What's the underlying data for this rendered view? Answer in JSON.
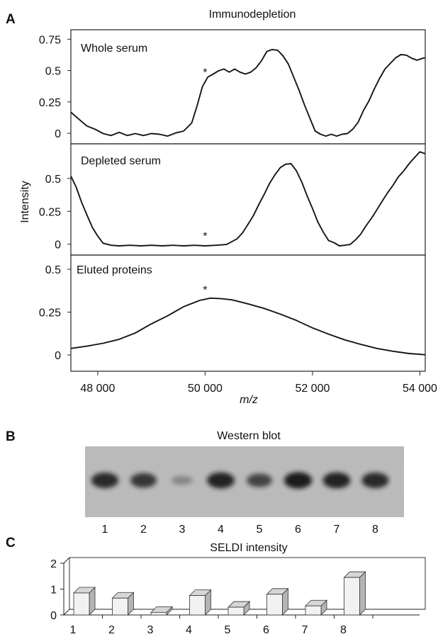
{
  "panel_labels": {
    "a": "A",
    "b": "B",
    "c": "C"
  },
  "chart_data": [
    {
      "type": "line",
      "title": "Immunodepletion",
      "xlabel": "m/z",
      "ylabel": "Intensity",
      "x_ticks": [
        48000,
        50000,
        52000,
        54000
      ],
      "x_tick_labels": [
        "48 000",
        "50 000",
        "52 000",
        "54 000"
      ],
      "xlim": [
        47500,
        54100
      ],
      "asterisk": "*",
      "subplots": [
        {
          "name": "Whole serum",
          "ylim": [
            -0.05,
            0.78
          ],
          "y_ticks": [
            0,
            0.25,
            0.5,
            0.75
          ],
          "y_tick_labels": [
            "0",
            "0.25",
            "0.5",
            "0.75"
          ],
          "asterisk_x": 50000,
          "x": [
            47500,
            47650,
            47800,
            47950,
            48100,
            48250,
            48400,
            48550,
            48700,
            48850,
            49000,
            49150,
            49300,
            49450,
            49600,
            49750,
            49850,
            49950,
            50050,
            50150,
            50250,
            50350,
            50450,
            50550,
            50650,
            50750,
            50850,
            50950,
            51050,
            51150,
            51250,
            51350,
            51450,
            51550,
            51650,
            51750,
            51850,
            51950,
            52050,
            52150,
            52250,
            52350,
            52450,
            52550,
            52650,
            52750,
            52850,
            52950,
            53050,
            53150,
            53250,
            53350,
            53450,
            53550,
            53650,
            53750,
            53850,
            53950,
            54050,
            54100
          ],
          "y": [
            0.17,
            0.11,
            0.06,
            0.03,
            0.0,
            -0.02,
            0.01,
            -0.02,
            0.0,
            -0.02,
            0.0,
            -0.01,
            -0.02,
            0.0,
            0.02,
            0.08,
            0.22,
            0.37,
            0.45,
            0.47,
            0.5,
            0.51,
            0.49,
            0.51,
            0.49,
            0.47,
            0.49,
            0.52,
            0.58,
            0.65,
            0.67,
            0.66,
            0.62,
            0.55,
            0.45,
            0.34,
            0.23,
            0.12,
            0.02,
            -0.01,
            -0.02,
            -0.01,
            -0.02,
            -0.01,
            0.0,
            0.03,
            0.09,
            0.18,
            0.26,
            0.35,
            0.44,
            0.51,
            0.56,
            0.6,
            0.63,
            0.62,
            0.6,
            0.58,
            0.6,
            0.6
          ]
        },
        {
          "name": "Depleted serum",
          "ylim": [
            -0.05,
            0.72
          ],
          "y_ticks": [
            0,
            0.25,
            0.5
          ],
          "y_tick_labels": [
            "0",
            "0.25",
            "0.5"
          ],
          "asterisk_x": 50000,
          "x": [
            47500,
            47600,
            47700,
            47800,
            47900,
            48000,
            48100,
            48250,
            48400,
            48600,
            48800,
            49000,
            49200,
            49400,
            49600,
            49800,
            50000,
            50200,
            50400,
            50600,
            50700,
            50800,
            50900,
            51000,
            51100,
            51200,
            51300,
            51400,
            51500,
            51600,
            51700,
            51800,
            51900,
            52000,
            52100,
            52200,
            52300,
            52400,
            52500,
            52600,
            52700,
            52800,
            52900,
            53000,
            53100,
            53200,
            53300,
            53400,
            53500,
            53600,
            53700,
            53800,
            53900,
            54000,
            54100
          ],
          "y": [
            0.52,
            0.43,
            0.32,
            0.22,
            0.13,
            0.06,
            0.01,
            -0.01,
            -0.01,
            -0.01,
            -0.01,
            -0.01,
            -0.01,
            -0.01,
            -0.01,
            -0.01,
            -0.01,
            -0.01,
            0.0,
            0.04,
            0.09,
            0.15,
            0.22,
            0.3,
            0.38,
            0.46,
            0.53,
            0.58,
            0.61,
            0.61,
            0.56,
            0.47,
            0.37,
            0.27,
            0.17,
            0.09,
            0.03,
            0.01,
            -0.01,
            -0.01,
            0.0,
            0.03,
            0.08,
            0.14,
            0.2,
            0.26,
            0.33,
            0.39,
            0.45,
            0.51,
            0.56,
            0.61,
            0.66,
            0.7,
            0.69
          ]
        },
        {
          "name": "Eluted proteins",
          "ylim": [
            -0.07,
            0.55
          ],
          "y_ticks": [
            0,
            0.25,
            0.5
          ],
          "y_tick_labels": [
            "0",
            "0.25",
            "0.5"
          ],
          "asterisk_x": 50000,
          "x": [
            47500,
            47800,
            48100,
            48400,
            48700,
            49000,
            49300,
            49600,
            49900,
            50100,
            50300,
            50500,
            50800,
            51100,
            51400,
            51700,
            52000,
            52300,
            52600,
            52900,
            53200,
            53500,
            53800,
            54100
          ],
          "y": [
            0.04,
            0.05,
            0.07,
            0.09,
            0.13,
            0.18,
            0.23,
            0.28,
            0.32,
            0.33,
            0.33,
            0.32,
            0.3,
            0.27,
            0.24,
            0.2,
            0.16,
            0.12,
            0.09,
            0.06,
            0.04,
            0.02,
            0.01,
            0.0
          ]
        }
      ]
    },
    {
      "type": "other",
      "title": "Western blot",
      "lanes": [
        "1",
        "2",
        "3",
        "4",
        "5",
        "6",
        "7",
        "8"
      ],
      "band_intensity": [
        0.85,
        0.75,
        0.15,
        0.9,
        0.65,
        0.95,
        0.9,
        0.85
      ],
      "colors": {
        "background": "#b8b8b8",
        "band": "#141414"
      }
    },
    {
      "type": "bar",
      "title": "SELDI intensity",
      "categories": [
        "1",
        "2",
        "3",
        "4",
        "5",
        "6",
        "7",
        "8"
      ],
      "values": [
        0.85,
        0.65,
        0.1,
        0.75,
        0.3,
        0.8,
        0.35,
        1.45
      ],
      "ylim": [
        0,
        2
      ],
      "y_ticks": [
        0,
        1,
        2
      ],
      "y_tick_labels": [
        "0",
        "1",
        "2"
      ],
      "colors": {
        "bar_front": "#f2f2f2",
        "bar_side": "#b4b4b4",
        "bar_top": "#d6d6d6"
      }
    }
  ]
}
